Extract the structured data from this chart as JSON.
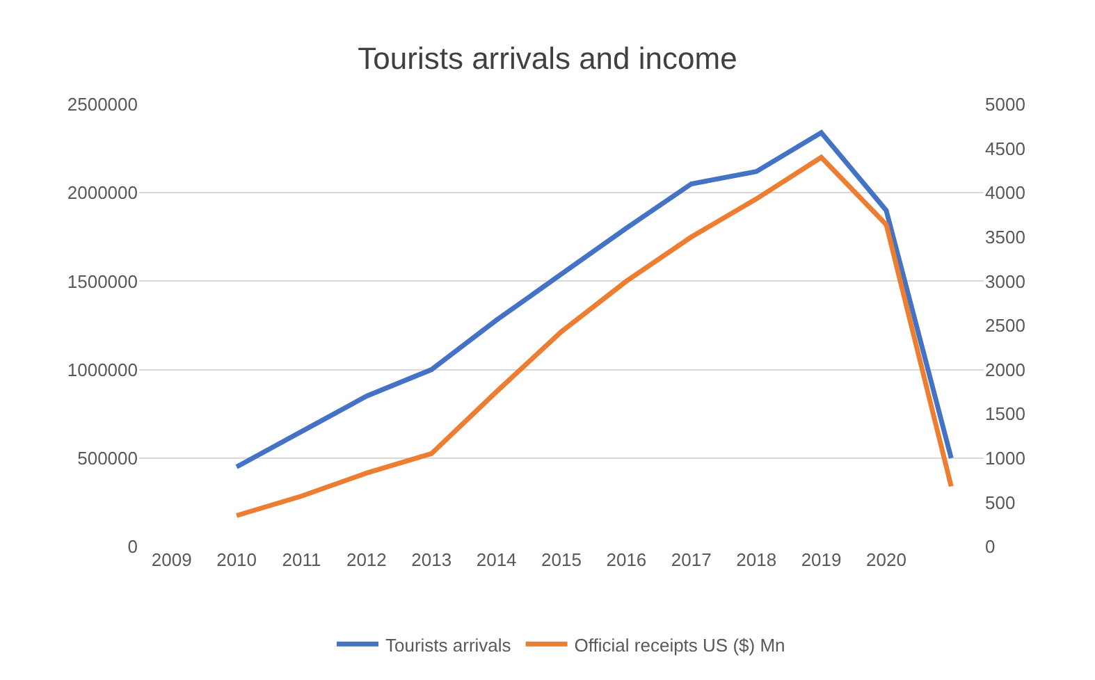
{
  "chart_data": {
    "type": "line",
    "title": "Tourists arrivals and income",
    "categories": [
      "2009",
      "2010",
      "2011",
      "2012",
      "2013",
      "2014",
      "2015",
      "2016",
      "2017",
      "2018",
      "2019",
      "2020",
      null
    ],
    "series": [
      {
        "name": "Tourists arrivals",
        "color": "#4472c4",
        "values": [
          null,
          450000,
          650000,
          850000,
          1000000,
          1280000,
          1540000,
          1800000,
          2050000,
          2120000,
          2340000,
          1900000,
          500000
        ]
      },
      {
        "name": "Official receipts US ($) Mn",
        "color": "#ed7d31",
        "axis": "y2",
        "values": [
          null,
          350,
          570,
          830,
          1050,
          1750,
          2430,
          3000,
          3500,
          3930,
          4400,
          3640,
          680
        ]
      }
    ],
    "ylim": [
      0,
      2500000
    ],
    "yticks": [
      0,
      500000,
      1000000,
      1500000,
      2000000,
      2500000
    ],
    "y2lim": [
      0,
      5000
    ],
    "y2ticks": [
      0,
      500,
      1000,
      1500,
      2000,
      2500,
      3000,
      3500,
      4000,
      4500,
      5000
    ],
    "grid": "y",
    "legend": "bottom",
    "marker": "none",
    "line_style": "solid"
  }
}
